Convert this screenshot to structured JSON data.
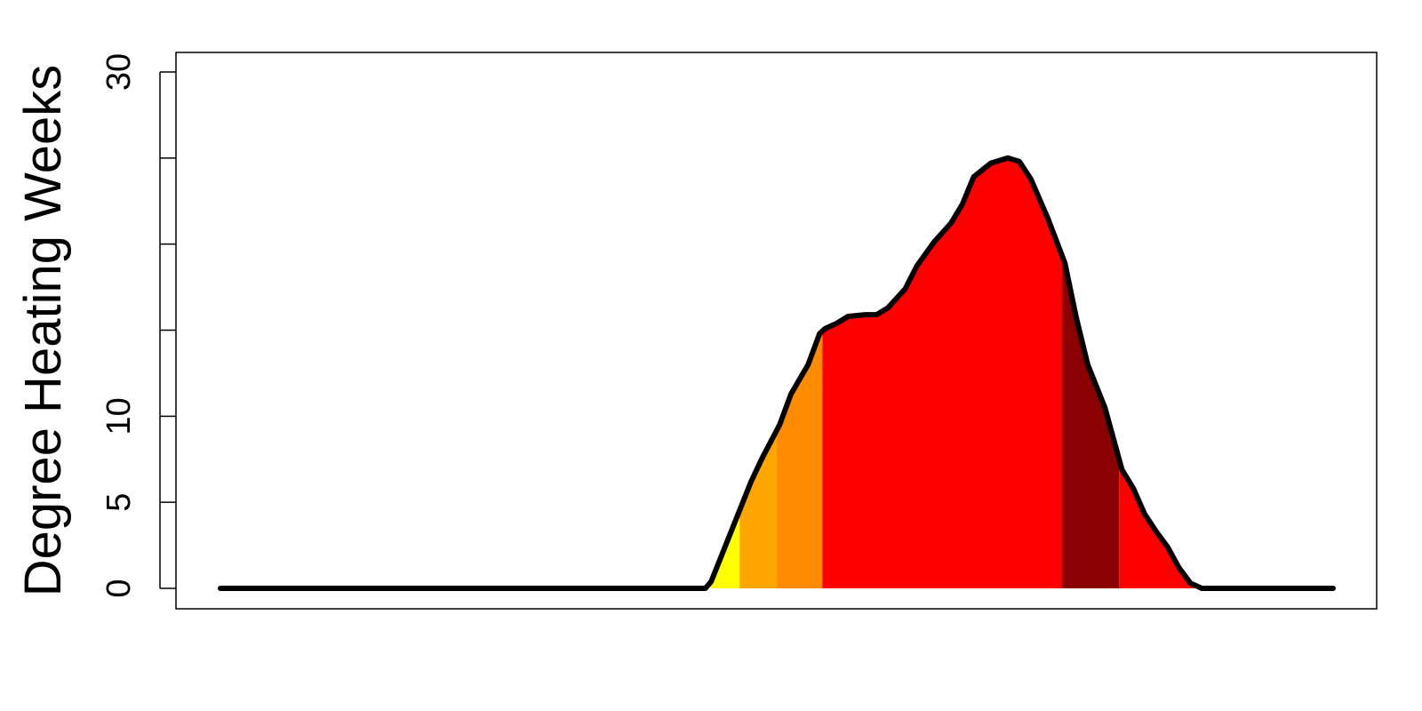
{
  "chart_data": {
    "type": "area",
    "title": "",
    "xlabel": "",
    "ylabel": "Degree Heating Weeks",
    "ylim": [
      0,
      30
    ],
    "yticks": [
      0,
      5,
      10,
      15,
      20,
      25,
      30
    ],
    "ytick_labels": [
      "0",
      "5",
      "10",
      "",
      "",
      "",
      "30"
    ],
    "xlim": [
      0,
      195
    ],
    "grid": false,
    "legend": "none",
    "line_color": "#000000",
    "series": [
      {
        "x": [
          0,
          10,
          20,
          30,
          40,
          50,
          60,
          70,
          80,
          85,
          86,
          90,
          93,
          95,
          98,
          100,
          103,
          105,
          106,
          108,
          110,
          113,
          115,
          117,
          120,
          122,
          125,
          128,
          130,
          132,
          135,
          138,
          140,
          142,
          145,
          148,
          150,
          152,
          155,
          157,
          158,
          160,
          162,
          164,
          166,
          168,
          170,
          172,
          174,
          175,
          178,
          180,
          183,
          185,
          187,
          188,
          190,
          195
        ],
        "y": [
          0,
          0,
          0,
          0,
          0,
          0,
          0,
          0,
          0,
          0,
          0.4,
          3.7,
          6.2,
          7.6,
          9.5,
          11.3,
          13.0,
          14.8,
          15.1,
          15.4,
          15.8,
          15.9,
          15.9,
          16.3,
          17.4,
          18.7,
          20.1,
          21.2,
          22.3,
          23.9,
          24.7,
          25.0,
          24.8,
          23.8,
          21.5,
          18.9,
          15.7,
          13.0,
          10.5,
          8.1,
          6.9,
          5.8,
          4.3,
          3.3,
          2.4,
          1.2,
          0.3,
          0,
          0,
          0,
          0,
          0,
          0,
          0,
          0,
          0,
          0,
          0
        ]
      }
    ],
    "bands": [
      {
        "x0": 86,
        "x1": 91,
        "color": "#FFFF00"
      },
      {
        "x0": 91,
        "x1": 97.5,
        "color": "#FFA500"
      },
      {
        "x0": 97.5,
        "x1": 105.5,
        "color": "#FF8C00"
      },
      {
        "x0": 105.5,
        "x1": 147.5,
        "color": "#FF0000"
      },
      {
        "x0": 147.5,
        "x1": 157.5,
        "color": "#8B0000"
      },
      {
        "x0": 157.5,
        "x1": 172,
        "color": "#FF0000"
      },
      {
        "x0": 172,
        "x1": 177,
        "color": "#FF8C00"
      },
      {
        "x0": 177,
        "x1": 182,
        "color": "#FFA500"
      },
      {
        "x0": 182,
        "x1": 188,
        "color": "#FFFF00"
      }
    ]
  }
}
